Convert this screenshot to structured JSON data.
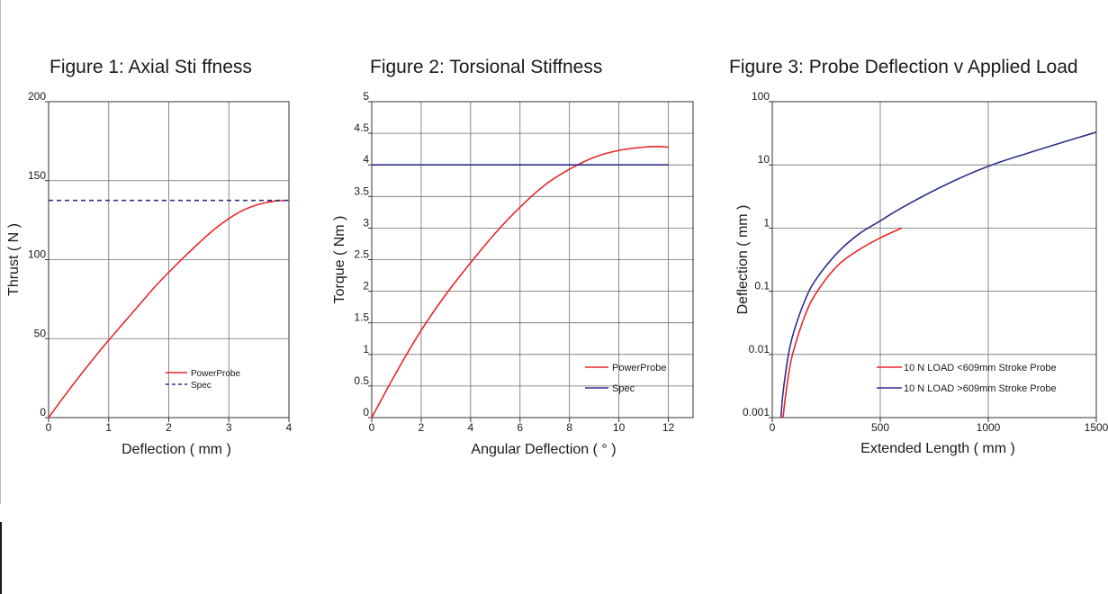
{
  "chart_data": [
    {
      "type": "line",
      "title": "Figure 1: Axial Sti ffness",
      "xlabel": "Deflection ( mm )",
      "ylabel": "Thrust ( N )",
      "xlim": [
        0,
        4
      ],
      "ylim": [
        0,
        200
      ],
      "x_ticks": [
        0,
        1,
        2,
        3,
        4
      ],
      "x_tick_labels": [
        "0",
        "1",
        "2",
        "3",
        "4"
      ],
      "y_ticks": [
        0,
        50,
        100,
        150,
        200
      ],
      "y_tick_labels": [
        "0",
        "50",
        "100",
        "150",
        "200"
      ],
      "y_scale": "linear",
      "grid": true,
      "legend_position": "bottom-right",
      "series": [
        {
          "name": "PowerProbe",
          "color": "#e8262b",
          "style": "solid",
          "x": [
            0,
            0.25,
            0.5,
            0.75,
            1,
            1.25,
            1.5,
            1.75,
            2,
            2.25,
            2.5,
            2.75,
            3,
            3.25,
            3.5,
            3.75,
            4
          ],
          "y": [
            0,
            13,
            25.5,
            37.5,
            49,
            60,
            71,
            82,
            92,
            101.5,
            110.5,
            119,
            126,
            131.5,
            135,
            137,
            137.5
          ]
        },
        {
          "name": "Spec",
          "color": "#2e2f8c",
          "style": "dashed",
          "x": [
            0,
            4
          ],
          "y": [
            137.5,
            137.5
          ]
        }
      ]
    },
    {
      "type": "line",
      "title": "Figure 2: Torsional Stiffness",
      "xlabel": "Angular Deflection ( ° )",
      "ylabel": "Torque ( Nm )",
      "xlim": [
        0,
        13
      ],
      "ylim": [
        0,
        5
      ],
      "x_ticks": [
        0,
        2,
        4,
        6,
        8,
        10,
        12
      ],
      "x_tick_labels": [
        "0",
        "2",
        "4",
        "6",
        "8",
        "10",
        "12"
      ],
      "y_ticks": [
        0,
        0.5,
        1,
        1.5,
        2,
        2.5,
        3,
        3.5,
        4,
        4.5,
        5
      ],
      "y_tick_labels": [
        "0",
        "0.5",
        "1",
        "1.5",
        "2",
        "2.5",
        "3",
        "3.5",
        "4",
        "4.5",
        "5"
      ],
      "y_scale": "linear",
      "grid": true,
      "legend_position": "bottom-right",
      "series": [
        {
          "name": "PowerProbe",
          "color": "#e8262b",
          "style": "solid",
          "x": [
            0,
            1,
            2,
            3,
            4,
            5,
            6,
            7,
            8,
            9,
            10,
            11,
            11.5,
            12
          ],
          "y": [
            0,
            0.72,
            1.38,
            1.95,
            2.45,
            2.92,
            3.33,
            3.68,
            3.93,
            4.12,
            4.23,
            4.28,
            4.29,
            4.28
          ]
        },
        {
          "name": "Spec",
          "color": "#2e2f8c",
          "style": "solid",
          "x": [
            0,
            12
          ],
          "y": [
            4,
            4
          ]
        }
      ]
    },
    {
      "type": "line",
      "title": "Figure 3: Probe Deflection v Applied Load",
      "xlabel": "Extended Length ( mm )",
      "ylabel": "Deflection ( mm )",
      "xlim": [
        0,
        1500
      ],
      "ylim": [
        0.001,
        100
      ],
      "x_ticks": [
        0,
        500,
        1000,
        1500
      ],
      "x_tick_labels": [
        "0",
        "500",
        "1000",
        "1500"
      ],
      "y_ticks": [
        0.001,
        0.01,
        0.1,
        1,
        10,
        100
      ],
      "y_tick_labels": [
        "0.001",
        "0.01",
        "0.1",
        "1",
        "10",
        "100"
      ],
      "y_scale": "log",
      "grid": true,
      "legend_position": "bottom-right",
      "series": [
        {
          "name": "10 N LOAD <609mm Stroke Probe",
          "color": "#e8262b",
          "style": "solid",
          "x": [
            50,
            60,
            80,
            100,
            150,
            200,
            300,
            400,
            500,
            600
          ],
          "y": [
            0.001,
            0.002,
            0.006,
            0.012,
            0.04,
            0.09,
            0.25,
            0.45,
            0.7,
            1.0
          ]
        },
        {
          "name": "10 N LOAD >609mm Stroke Probe",
          "color": "#2e2f8c",
          "style": "solid",
          "x": [
            40,
            50,
            75,
            100,
            150,
            200,
            300,
            400,
            500,
            600,
            800,
            1000,
            1200,
            1500
          ],
          "y": [
            0.001,
            0.0025,
            0.01,
            0.023,
            0.07,
            0.15,
            0.4,
            0.8,
            1.3,
            2.1,
            4.8,
            9.5,
            16,
            33
          ]
        }
      ]
    }
  ]
}
